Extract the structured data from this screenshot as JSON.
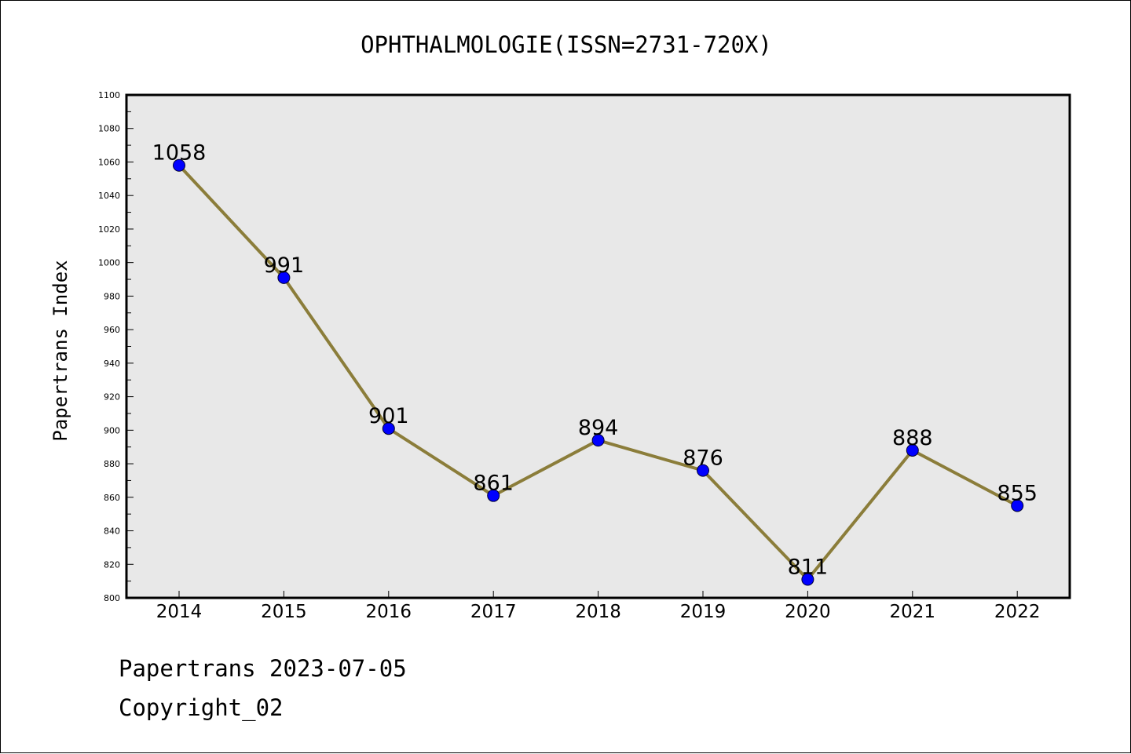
{
  "chart_data": {
    "type": "line",
    "title": "OPHTHALMOLOGIE(ISSN=2731-720X)",
    "xlabel": "",
    "ylabel": "Papertrans Index",
    "categories": [
      "2014",
      "2015",
      "2016",
      "2017",
      "2018",
      "2019",
      "2020",
      "2021",
      "2022"
    ],
    "series": [
      {
        "values": [
          1058,
          991,
          901,
          861,
          894,
          876,
          811,
          888,
          855
        ]
      }
    ],
    "data_labels": [
      "1058",
      "991",
      "901",
      "861",
      "894",
      "876",
      "811",
      "888",
      "855"
    ],
    "ylim": [
      800,
      1100
    ],
    "yticks": [
      800,
      820,
      840,
      860,
      880,
      900,
      920,
      940,
      960,
      980,
      1000,
      1020,
      1040,
      1060,
      1080,
      1100
    ],
    "ytick_labels": [
      "800",
      "820",
      "840",
      "860",
      "880",
      "900",
      "920",
      "940",
      "960",
      "980",
      "1000",
      "1020",
      "1040",
      "1060",
      "1080",
      "1100"
    ],
    "grid": false,
    "legend": "none",
    "colors": {
      "line": "#8b7d3a",
      "marker": "#0000ff",
      "plot_background": "#e8e8e8"
    }
  },
  "footer": {
    "line1": "Papertrans 2023-07-05",
    "line2": "Copyright_02"
  }
}
